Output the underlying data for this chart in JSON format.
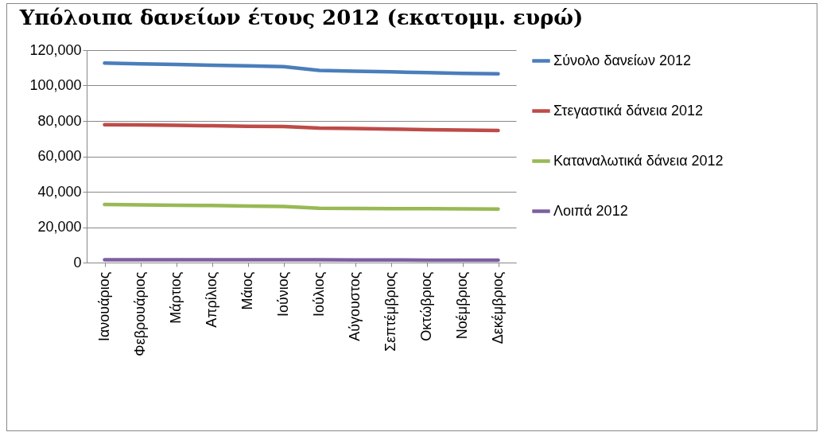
{
  "chart_data": {
    "type": "line",
    "title": "Υπόλοιπα δανείων έτους 2012 (εκατομμ. ευρώ)",
    "categories": [
      "Ιανουάριος",
      "Φεβρουάριος",
      "Μάρτιος",
      "Απρίλιος",
      "Μάιος",
      "Ιούνιος",
      "Ιούλιος",
      "Αύγουστος",
      "Σεπτέμβριος",
      "Οκτώβριος",
      "Νοέμβριος",
      "Δεκέμβριος"
    ],
    "series": [
      {
        "name": "Σύνολο δανείων 2012",
        "color": "#4a7ebb",
        "values": [
          112700,
          112300,
          111900,
          111500,
          111100,
          110700,
          108500,
          108100,
          107700,
          107300,
          106900,
          106600
        ]
      },
      {
        "name": "Στεγαστικά δάνεια 2012",
        "color": "#be4b48",
        "values": [
          77900,
          77700,
          77500,
          77300,
          77000,
          76800,
          76000,
          75700,
          75400,
          75100,
          74800,
          74600
        ]
      },
      {
        "name": "Καταναλωτικά δάνεια 2012",
        "color": "#98b954",
        "values": [
          32800,
          32600,
          32400,
          32200,
          31900,
          31700,
          30700,
          30600,
          30500,
          30400,
          30300,
          30200
        ]
      },
      {
        "name": "Λοιπά 2012",
        "color": "#7d5fa0",
        "values": [
          1600,
          1600,
          1600,
          1600,
          1600,
          1600,
          1600,
          1500,
          1500,
          1400,
          1300,
          1300
        ]
      }
    ],
    "ylim": [
      0,
      120000
    ],
    "yticks": [
      0,
      {
        "value": 20000,
        "label": "20,000"
      },
      {
        "value": 40000,
        "label": "40,000"
      },
      {
        "value": 60000,
        "label": "60,000"
      },
      {
        "value": 80000,
        "label": "80,000"
      },
      {
        "value": 100000,
        "label": "100,000"
      },
      {
        "value": 120000,
        "label": "120,000"
      }
    ],
    "grid": "y",
    "legend": "right",
    "marker": "none",
    "line_style": "solid"
  }
}
